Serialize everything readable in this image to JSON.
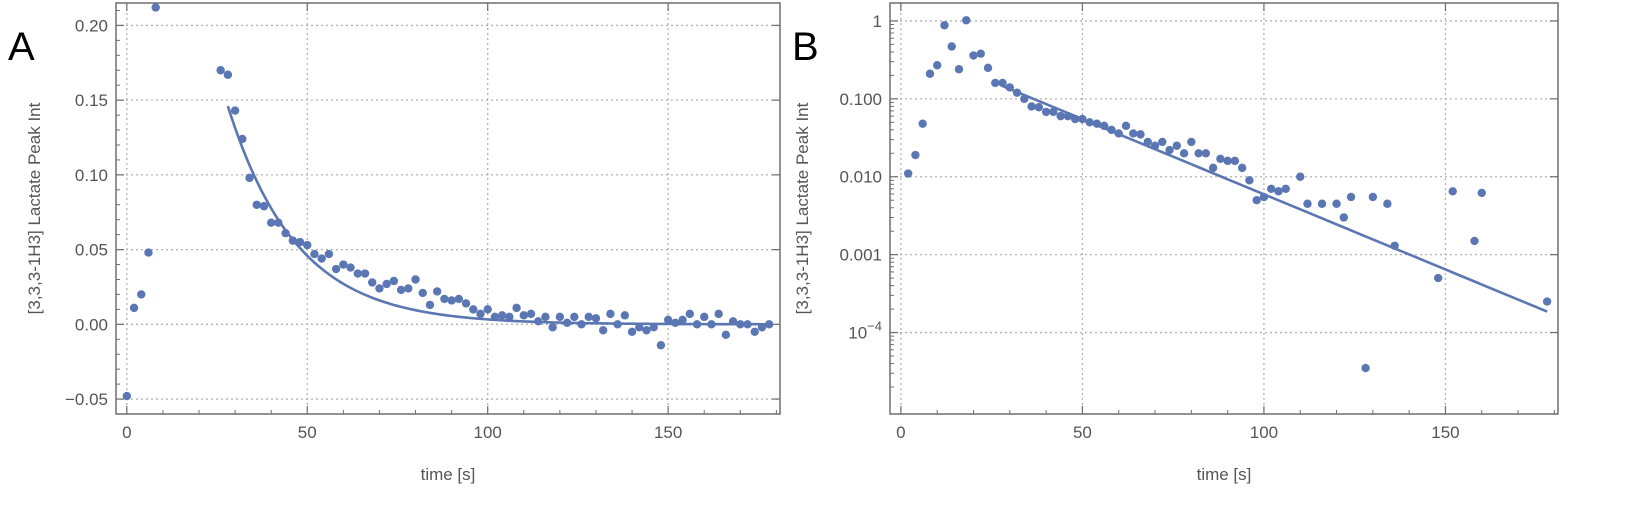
{
  "chart_data": [
    {
      "panel_label": "A",
      "type": "scatter",
      "xlabel": "time [s]",
      "ylabel": "[3,3,3-1H3] Lactate Peak Int",
      "xlim": [
        -3,
        181
      ],
      "ylim": [
        -0.06,
        0.215
      ],
      "yscale": "linear",
      "xticks": [
        0,
        50,
        100,
        150
      ],
      "xtick_labels": [
        "0",
        "50",
        "100",
        "150"
      ],
      "yticks": [
        -0.05,
        0,
        0.05,
        0.1,
        0.15,
        0.2
      ],
      "ytick_labels": [
        "-0.05",
        "0.00",
        "0.05",
        "0.10",
        "0.15",
        "0.20"
      ],
      "grid": true,
      "color": "#5b77b3",
      "points": {
        "x": [
          0,
          2,
          4,
          6,
          8,
          26,
          28,
          30,
          32,
          34,
          36,
          38,
          40,
          42,
          44,
          46,
          48,
          50,
          52,
          54,
          56,
          58,
          60,
          62,
          64,
          66,
          68,
          70,
          72,
          74,
          76,
          78,
          80,
          82,
          84,
          86,
          88,
          90,
          92,
          94,
          96,
          98,
          100,
          102,
          104,
          106,
          108,
          110,
          112,
          114,
          116,
          118,
          120,
          122,
          124,
          126,
          128,
          130,
          132,
          134,
          136,
          138,
          140,
          142,
          144,
          146,
          148,
          150,
          152,
          154,
          156,
          158,
          160,
          162,
          164,
          166,
          168,
          170,
          172,
          174,
          176,
          178
        ],
        "y": [
          -0.048,
          0.011,
          0.02,
          0.048,
          0.212,
          0.17,
          0.167,
          0.143,
          0.124,
          0.098,
          0.08,
          0.079,
          0.068,
          0.068,
          0.061,
          0.056,
          0.055,
          0.053,
          0.047,
          0.044,
          0.047,
          0.037,
          0.04,
          0.038,
          0.034,
          0.034,
          0.028,
          0.024,
          0.027,
          0.029,
          0.023,
          0.024,
          0.03,
          0.021,
          0.013,
          0.022,
          0.017,
          0.016,
          0.017,
          0.014,
          0.01,
          0.007,
          0.01,
          0.005,
          0.006,
          0.005,
          0.011,
          0.006,
          0.007,
          0.002,
          0.005,
          -0.002,
          0.005,
          0.001,
          0.005,
          0.0,
          0.005,
          0.004,
          -0.004,
          0.007,
          0.0,
          0.006,
          -0.005,
          -0.002,
          -0.004,
          -0.002,
          -0.014,
          0.003,
          0.001,
          0.003,
          0.007,
          0.0,
          0.005,
          0.0,
          0.007,
          -0.007,
          0.002,
          0.0,
          0.0,
          -0.005,
          -0.002,
          0.0
        ]
      },
      "fit": {
        "model": "a*exp(-(t-28)/tau)",
        "a": 0.146,
        "tau": 19,
        "t_start": 28,
        "t_end": 178
      }
    },
    {
      "panel_label": "B",
      "type": "scatter",
      "xlabel": "time [s]",
      "ylabel": "[3,3,3-1H3] Lactate Peak Int",
      "xlim": [
        -3,
        181
      ],
      "ylim": [
        9e-06,
        1.7
      ],
      "yscale": "log",
      "xticks": [
        0,
        50,
        100,
        150
      ],
      "xtick_labels": [
        "0",
        "50",
        "100",
        "150"
      ],
      "yticks": [
        0.0001,
        0.001,
        0.01,
        0.1,
        1
      ],
      "ytick_labels": [
        "",
        "0.001",
        "0.010",
        "0.100",
        "1"
      ],
      "ytick_power_label": {
        "base": "10",
        "exponent": "-4"
      },
      "grid": true,
      "color": "#5b77b3",
      "points": {
        "x": [
          2,
          4,
          6,
          8,
          10,
          12,
          14,
          16,
          18,
          20,
          22,
          24,
          26,
          28,
          30,
          32,
          34,
          36,
          38,
          40,
          42,
          44,
          46,
          48,
          50,
          52,
          54,
          56,
          58,
          60,
          62,
          64,
          66,
          68,
          70,
          72,
          74,
          76,
          78,
          80,
          82,
          84,
          86,
          88,
          90,
          92,
          94,
          96,
          98,
          100,
          102,
          104,
          106,
          110,
          112,
          116,
          120,
          122,
          124,
          130,
          134,
          136,
          148,
          152,
          158,
          160,
          128,
          178
        ],
        "y": [
          0.011,
          0.019,
          0.048,
          0.21,
          0.27,
          0.88,
          0.47,
          0.24,
          1.02,
          0.36,
          0.38,
          0.25,
          0.16,
          0.16,
          0.14,
          0.12,
          0.1,
          0.08,
          0.078,
          0.068,
          0.068,
          0.06,
          0.06,
          0.055,
          0.055,
          0.05,
          0.048,
          0.045,
          0.04,
          0.036,
          0.045,
          0.036,
          0.035,
          0.028,
          0.025,
          0.028,
          0.022,
          0.025,
          0.02,
          0.028,
          0.02,
          0.02,
          0.013,
          0.017,
          0.016,
          0.016,
          0.013,
          0.009,
          0.005,
          0.0055,
          0.007,
          0.0065,
          0.007,
          0.01,
          0.0045,
          0.0045,
          0.0045,
          0.003,
          0.0055,
          0.0055,
          0.0045,
          0.0013,
          0.0005,
          0.0065,
          0.0015,
          0.0062,
          3.5e-05,
          0.00025
        ]
      },
      "fit": {
        "model": "a*exp(-(t-28)/tau)",
        "a": 0.146,
        "tau": 22.5,
        "t_start": 28,
        "t_end": 178
      }
    }
  ]
}
